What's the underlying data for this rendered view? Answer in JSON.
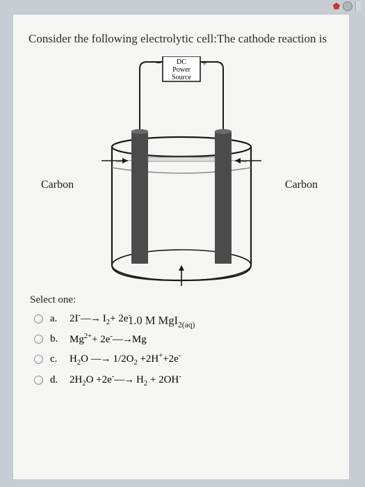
{
  "question": "Consider the following electrolytic cell:The cathode reaction is",
  "diagram": {
    "power_source_lines": [
      "DC",
      "Power",
      "Source"
    ],
    "minus": "−",
    "plus": "+",
    "electrode_label_left": "Carbon",
    "electrode_label_right": "Carbon",
    "solution_label_prefix": "1.0 M MgI",
    "solution_label_sub": "2(aq)",
    "colors": {
      "electrode": "#4b4b4b",
      "beaker_stroke": "#1a1a1a",
      "wire": "#1a1a1a",
      "box_fill": "#ffffff",
      "liquid_line": "#888"
    }
  },
  "select_label": "Select one:",
  "options": [
    {
      "letter": "a.",
      "html": "2I<sup>-</sup><span class='arrow'>—→</span> I<sub>2</sub>+ 2e<sup>-</sup>"
    },
    {
      "letter": "b.",
      "html": "Mg<sup>2+</sup>+ 2e<sup>-</sup><span class='arrow'>—→</span>Mg"
    },
    {
      "letter": "c.",
      "html": "H<sub>2</sub>O <span class='arrow'>—→</span> 1/2O<sub>2</sub> +2H<sup>+</sup>+2e<sup>-</sup>"
    },
    {
      "letter": "d.",
      "html": "2H<sub>2</sub>O +2e<sup>-</sup><span class='arrow'>—→</span> H<sub>2</sub> + 2OH<sup>-</sup>"
    }
  ]
}
